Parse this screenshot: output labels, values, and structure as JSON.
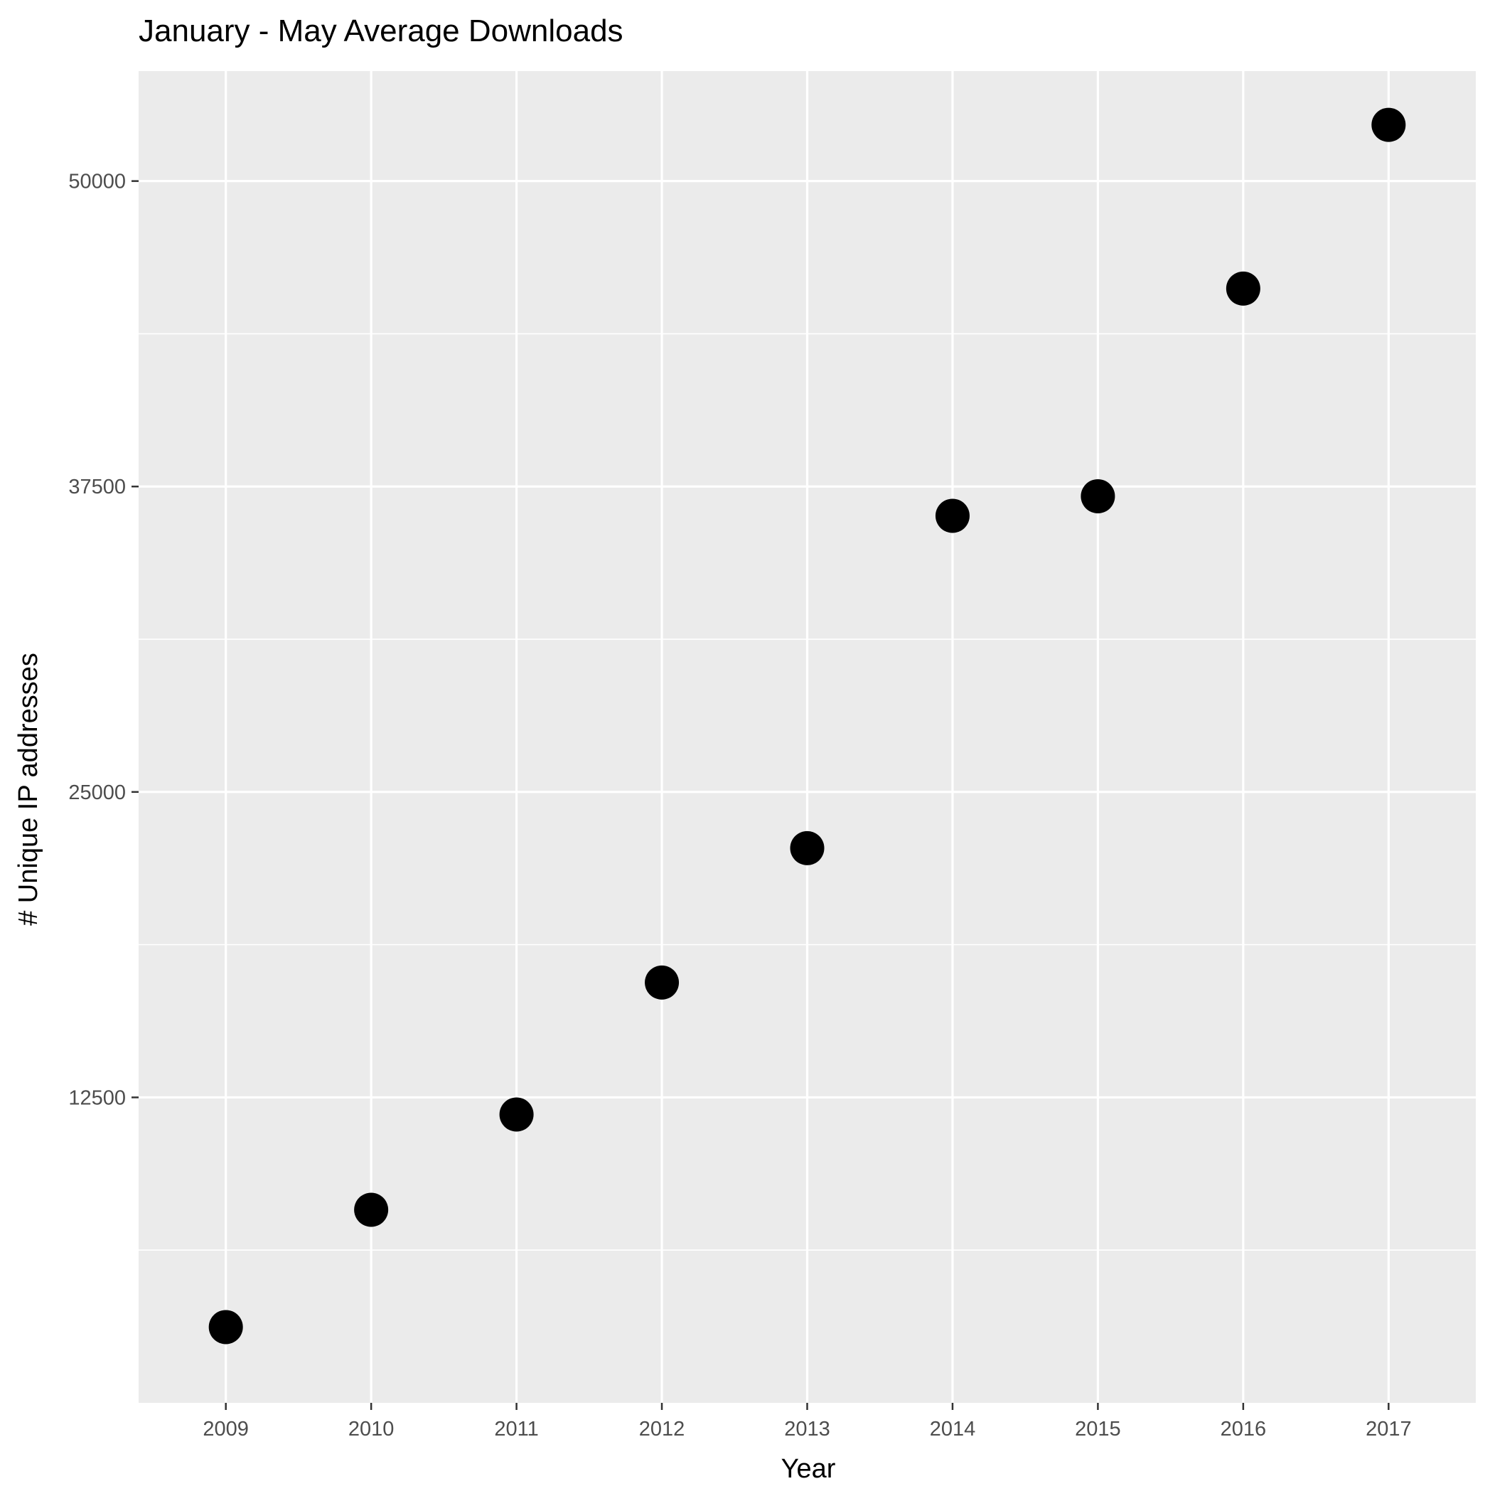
{
  "chart_data": {
    "type": "scatter",
    "title": "January - May Average Downloads",
    "xlabel": "Year",
    "ylabel": "# Unique IP addresses",
    "x": [
      2009,
      2010,
      2011,
      2012,
      2013,
      2014,
      2015,
      2016,
      2017
    ],
    "series": [
      {
        "values": [
          3100,
          7900,
          11800,
          17200,
          22700,
          36300,
          37100,
          45600,
          52300
        ]
      }
    ],
    "x_ticks": [
      "2009",
      "2010",
      "2011",
      "2012",
      "2013",
      "2014",
      "2015",
      "2016",
      "2017"
    ],
    "y_ticks": [
      "12500",
      "25000",
      "37500",
      "50000"
    ],
    "xlim": [
      2008.4,
      2017.6
    ],
    "ylim": [
      0,
      54500
    ],
    "grid": true,
    "colors": {
      "panel": "#ebebeb",
      "grid": "#ffffff",
      "point": "#000000",
      "tick_text": "#4d4d4d"
    }
  }
}
